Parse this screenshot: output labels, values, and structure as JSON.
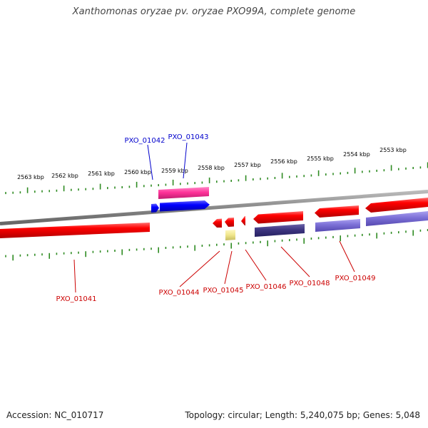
{
  "title": "Xanthomonas oryzae pv. oryzae PXO99A, complete genome",
  "footer": {
    "accession": "Accession: NC_010717",
    "summary": "Topology: circular; Length: 5,240,075 bp; Genes: 5,048"
  },
  "ruler": {
    "labels": [
      "2563 kbp",
      "2562 kbp",
      "2561 kbp",
      "2560 kbp",
      "2559 kbp",
      "2558 kbp",
      "2557 kbp",
      "2556 kbp",
      "2555 kbp",
      "2554 kbp",
      "2553 kbp"
    ],
    "tick_color": "#2e8b22"
  },
  "colors": {
    "backbone": "#888888",
    "forward_label": "#0000cc",
    "reverse_label": "#cc0000"
  },
  "genes": [
    {
      "name": "PXO_01041",
      "strand": "reverse",
      "color": "#ff0000"
    },
    {
      "name": "PXO_01042",
      "strand": "forward",
      "color": "#0000ff"
    },
    {
      "name": "PXO_01043",
      "strand": "forward",
      "color": "#ff3399"
    },
    {
      "name": "PXO_01044",
      "strand": "reverse",
      "color": "#ff0000"
    },
    {
      "name": "PXO_01045",
      "strand": "reverse",
      "color": "#ff0000"
    },
    {
      "name": "PXO_01046",
      "strand": "reverse",
      "color": "#ff0000"
    },
    {
      "name": "PXO_01048",
      "strand": "reverse",
      "color": "#ff0000"
    },
    {
      "name": "PXO_01049",
      "strand": "reverse",
      "color": "#ff0000"
    }
  ],
  "extra_features": [
    {
      "type": "yellow-feature",
      "color": "#f0e68c"
    },
    {
      "type": "navy-feature",
      "color": "#3d3580"
    },
    {
      "type": "purple-feature",
      "color": "#7b6fd6"
    }
  ]
}
